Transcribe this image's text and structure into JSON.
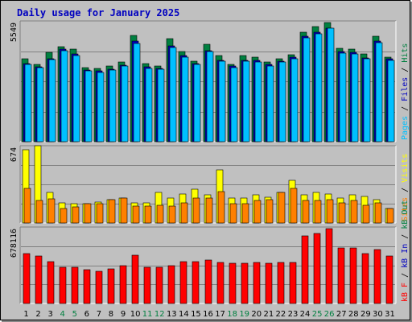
{
  "chart_data": {
    "type": "bar",
    "title": "Daily usage for January 2025",
    "categories": [
      "1",
      "2",
      "3",
      "4",
      "5",
      "6",
      "7",
      "8",
      "9",
      "10",
      "11",
      "12",
      "13",
      "14",
      "15",
      "16",
      "17",
      "18",
      "19",
      "20",
      "21",
      "22",
      "23",
      "24",
      "25",
      "26",
      "27",
      "28",
      "29",
      "30",
      "31"
    ],
    "weekend_days": [
      4,
      5,
      11,
      12,
      18,
      19,
      25,
      26
    ],
    "panels": [
      {
        "id": "requests",
        "max_label": "5549",
        "ymax": 5549,
        "right_axis": [
          {
            "text": "Pages",
            "color": "#00c0ff"
          },
          {
            "text": " / ",
            "color": "#000000"
          },
          {
            "text": "Files",
            "color": "#0000c0"
          },
          {
            "text": " / ",
            "color": "#000000"
          },
          {
            "text": "Hits",
            "color": "#008040"
          }
        ],
        "series": [
          {
            "name": "Hits",
            "color": "#008040",
            "values": [
              3870,
              3600,
              4150,
              4420,
              4310,
              3450,
              3400,
              3510,
              3700,
              4950,
              3620,
              3530,
              4800,
              4200,
              3760,
              4540,
              4000,
              3610,
              4000,
              3920,
              3710,
              3880,
              4040,
              5100,
              5350,
              5550,
              4340,
              4300,
              4100,
              4900,
              3950
            ]
          },
          {
            "name": "Files",
            "color": "#0000c0",
            "values": [
              3650,
              3470,
              3880,
              4320,
              4080,
              3330,
              3300,
              3380,
              3580,
              4690,
              3490,
              3400,
              4450,
              4000,
              3650,
              4250,
              3800,
              3510,
              3800,
              3770,
              3590,
              3760,
              3920,
              4900,
              5100,
              5300,
              4200,
              4150,
              3900,
              4700,
              3850
            ]
          },
          {
            "name": "Pages",
            "color": "#00c0ff",
            "values": [
              3600,
              3440,
              3820,
              4250,
              4020,
              3300,
              3240,
              3340,
              3520,
              4590,
              3430,
              3370,
              4380,
              3920,
              3590,
              4190,
              3760,
              3460,
              3760,
              3700,
              3530,
              3720,
              3870,
              4840,
              5030,
              5280,
              4130,
              4090,
              3860,
              4630,
              3800
            ]
          }
        ]
      },
      {
        "id": "visits",
        "max_label": "674",
        "ymax": 674,
        "right_axis": [
          {
            "text": "Sites",
            "color": "#ff8000"
          },
          {
            "text": " / ",
            "color": "#000000"
          },
          {
            "text": "Visits",
            "color": "#ffff00"
          }
        ],
        "series": [
          {
            "name": "Visits",
            "color": "#ffff00",
            "values": [
              650,
              690,
              270,
              180,
              170,
              170,
              190,
              210,
              220,
              180,
              180,
              270,
              220,
              260,
              300,
              250,
              470,
              220,
              220,
              250,
              230,
              270,
              380,
              250,
              270,
              260,
              220,
              250,
              240,
              210,
              130
            ]
          },
          {
            "name": "Sites",
            "color": "#ff8000",
            "values": [
              310,
              200,
              215,
              130,
              140,
              170,
              170,
              210,
              220,
              150,
              150,
              160,
              150,
              180,
              220,
              220,
              280,
              170,
              170,
              200,
              210,
              270,
              310,
              200,
              200,
              210,
              180,
              200,
              160,
              180,
              130
            ]
          }
        ]
      },
      {
        "id": "kbytes",
        "max_label": "678116",
        "ymax": 678116,
        "right_axis": [
          {
            "text": "kB F",
            "color": "#ff0000"
          },
          {
            "text": " / ",
            "color": "#000000"
          },
          {
            "text": "kB In",
            "color": "#0000c0"
          },
          {
            "text": " / ",
            "color": "#000000"
          },
          {
            "text": "kB Out",
            "color": "#008040"
          }
        ],
        "series": [
          {
            "name": "kB F",
            "color": "#ff0000",
            "values": [
              450000,
              430000,
              380000,
              325000,
              325000,
              305000,
              290000,
              315000,
              345000,
              440000,
              325000,
              325000,
              345000,
              380000,
              380000,
              395000,
              375000,
              365000,
              365000,
              375000,
              365000,
              375000,
              375000,
              615000,
              635000,
              676000,
              500000,
              500000,
              455000,
              485000,
              430000
            ]
          }
        ]
      }
    ]
  }
}
